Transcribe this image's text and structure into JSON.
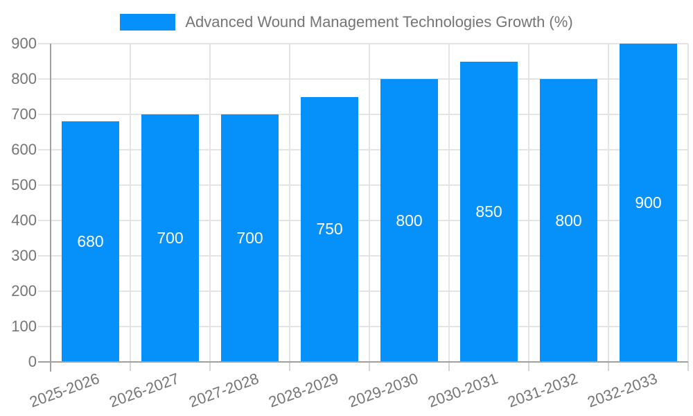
{
  "legend": {
    "label": "Advanced Wound Management Technologies Growth (%)"
  },
  "colors": {
    "bar": "#0691fa",
    "grid": "#e4e4e4",
    "axis": "#a0a0a0",
    "text": "#757575",
    "value_label": "#ffffff"
  },
  "chart_data": {
    "type": "bar",
    "title": "Advanced Wound Management Technologies Growth (%)",
    "categories": [
      "2025-2026",
      "2026-2027",
      "2027-2028",
      "2028-2029",
      "2029-2030",
      "2030-2031",
      "2031-2032",
      "2032-2033"
    ],
    "values": [
      680,
      700,
      700,
      750,
      800,
      850,
      800,
      900
    ],
    "xlabel": "",
    "ylabel": "",
    "ylim": [
      0,
      900
    ],
    "yticks": [
      0,
      100,
      200,
      300,
      400,
      500,
      600,
      700,
      800,
      900
    ],
    "value_labels_shown": true,
    "legend_position": "top-center",
    "grid": true
  }
}
